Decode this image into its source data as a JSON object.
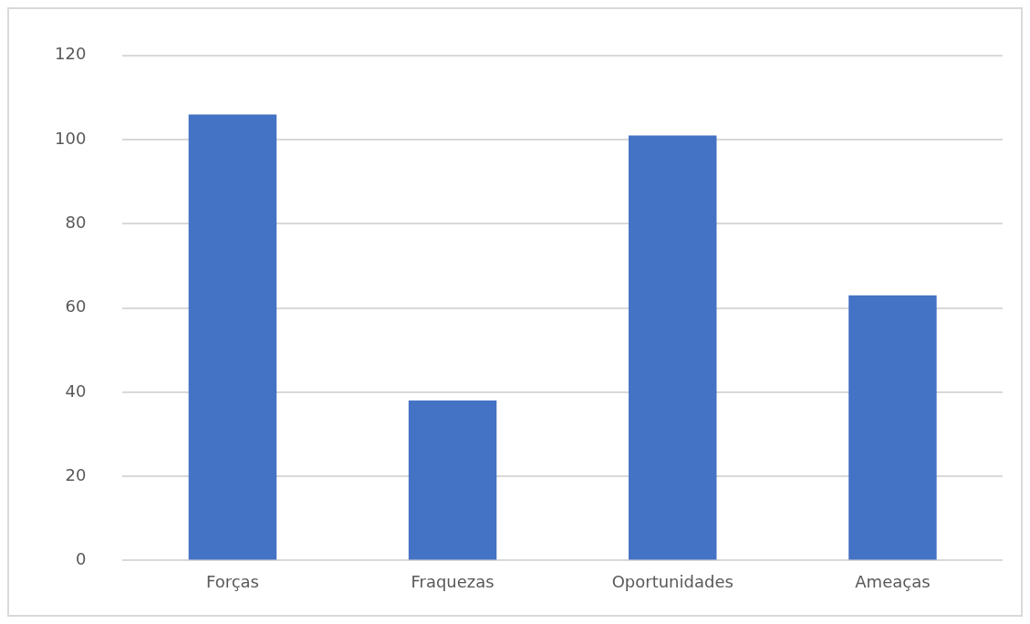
{
  "chart_data": {
    "type": "bar",
    "categories": [
      "Forças",
      "Fraquezas",
      "Oportunidades",
      "Ameaças"
    ],
    "values": [
      106,
      38,
      101,
      63
    ],
    "color": "#4472c4",
    "ylim": [
      0,
      120
    ],
    "yticks": [
      0,
      20,
      40,
      60,
      80,
      100,
      120
    ],
    "grid": "y",
    "legend": false
  }
}
